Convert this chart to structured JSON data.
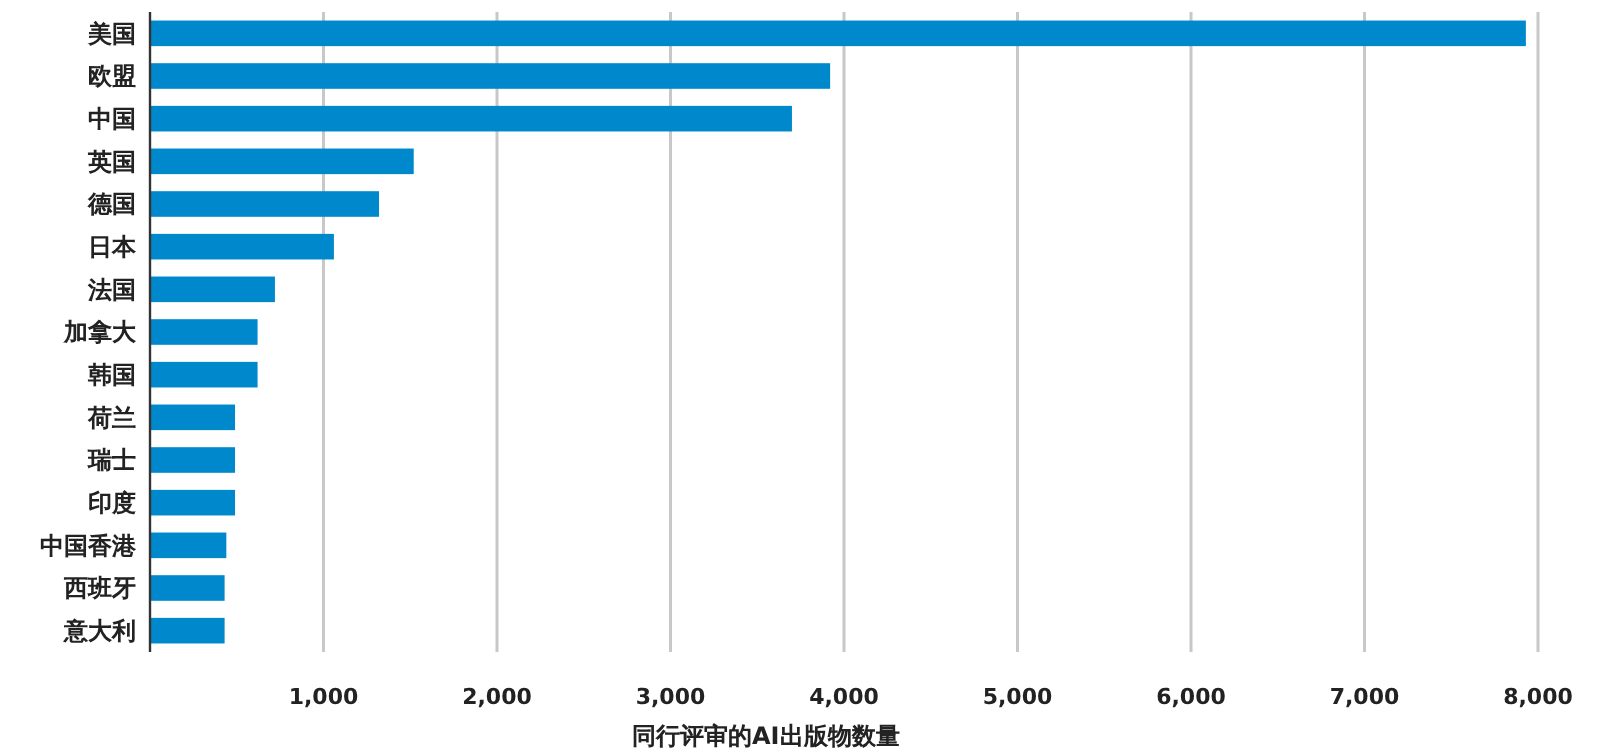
{
  "chart_data": {
    "type": "bar",
    "orientation": "horizontal",
    "xlabel": "同行评审的AI出版物数量",
    "categories": [
      "美国",
      "欧盟",
      "中国",
      "英国",
      "德国",
      "日本",
      "法国",
      "加拿大",
      "韩国",
      "荷兰",
      "瑞士",
      "印度",
      "中国香港",
      "西班牙",
      "意大利"
    ],
    "values": [
      7930,
      3920,
      3700,
      1520,
      1320,
      1060,
      720,
      620,
      620,
      490,
      490,
      490,
      440,
      430,
      430
    ],
    "color": "#0088cc",
    "xlim": [
      0,
      8000
    ],
    "xticks": [
      {
        "value": 1000,
        "label": "1,000"
      },
      {
        "value": 2000,
        "label": "2,000"
      },
      {
        "value": 3000,
        "label": "3,000"
      },
      {
        "value": 4000,
        "label": "4,000"
      },
      {
        "value": 5000,
        "label": "5,000"
      },
      {
        "value": 6000,
        "label": "6,000"
      },
      {
        "value": 7000,
        "label": "7,000"
      },
      {
        "value": 8000,
        "label": "8,000"
      }
    ],
    "grid": "x"
  }
}
